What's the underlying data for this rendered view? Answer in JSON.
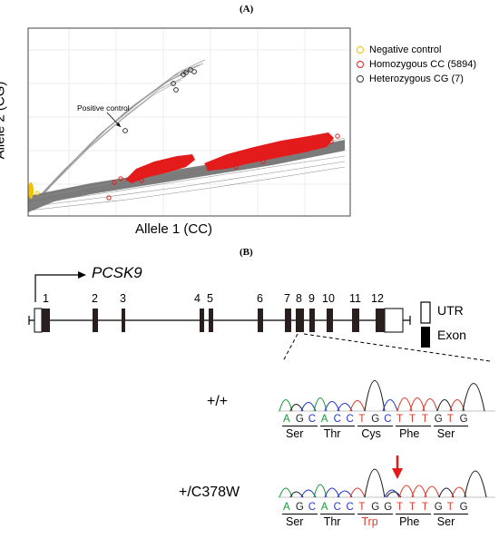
{
  "panel_a": {
    "label": "(A)",
    "ylabel": "Allele 2 (CG)",
    "xlabel": "Allele 1 (CC)",
    "annotation": "Positive control",
    "legend": [
      {
        "label": "Negative control",
        "color": "#f2c200"
      },
      {
        "label": "Homozygous CC (5894)",
        "color": "#ee1c1c"
      },
      {
        "label": "Heterozygous CG (7)",
        "color": "#333333"
      }
    ]
  },
  "panel_b": {
    "label": "(B)",
    "gene": "PCSK9",
    "exons": [
      "1",
      "2",
      "3",
      "4",
      "5",
      "6",
      "7",
      "8",
      "9",
      "10",
      "11",
      "12"
    ],
    "legend": {
      "utr": "UTR",
      "exon": "Exon"
    },
    "rows": [
      {
        "genotype": "+/+",
        "bases": [
          {
            "b": "A",
            "c": "#1a9a3a"
          },
          {
            "b": "G",
            "c": "#222222"
          },
          {
            "b": "C",
            "c": "#2637c8"
          },
          {
            "b": "A",
            "c": "#1a9a3a"
          },
          {
            "b": "C",
            "c": "#2637c8"
          },
          {
            "b": "C",
            "c": "#2637c8"
          },
          {
            "b": "T",
            "c": "#e03a2a"
          },
          {
            "b": "G",
            "c": "#222222"
          },
          {
            "b": "C",
            "c": "#2637c8"
          },
          {
            "b": "T",
            "c": "#e03a2a"
          },
          {
            "b": "T",
            "c": "#e03a2a"
          },
          {
            "b": "T",
            "c": "#e03a2a"
          },
          {
            "b": "G",
            "c": "#222222"
          },
          {
            "b": "T",
            "c": "#e03a2a"
          },
          {
            "b": "G",
            "c": "#222222"
          }
        ],
        "codons": [
          {
            "aa": "Ser",
            "c": "#000000"
          },
          {
            "aa": "Thr",
            "c": "#000000"
          },
          {
            "aa": "Cys",
            "c": "#000000"
          },
          {
            "aa": "Phe",
            "c": "#000000"
          },
          {
            "aa": "Ser",
            "c": "#000000"
          }
        ]
      },
      {
        "genotype": "+/C378W",
        "bases": [
          {
            "b": "A",
            "c": "#1a9a3a"
          },
          {
            "b": "G",
            "c": "#222222"
          },
          {
            "b": "C",
            "c": "#2637c8"
          },
          {
            "b": "A",
            "c": "#1a9a3a"
          },
          {
            "b": "C",
            "c": "#2637c8"
          },
          {
            "b": "C",
            "c": "#2637c8"
          },
          {
            "b": "T",
            "c": "#e03a2a"
          },
          {
            "b": "G",
            "c": "#222222"
          },
          {
            "b": "G",
            "c": "#222222"
          },
          {
            "b": "T",
            "c": "#e03a2a"
          },
          {
            "b": "T",
            "c": "#e03a2a"
          },
          {
            "b": "T",
            "c": "#e03a2a"
          },
          {
            "b": "G",
            "c": "#222222"
          },
          {
            "b": "T",
            "c": "#e03a2a"
          },
          {
            "b": "G",
            "c": "#222222"
          }
        ],
        "codons": [
          {
            "aa": "Ser",
            "c": "#000000"
          },
          {
            "aa": "Thr",
            "c": "#000000"
          },
          {
            "aa": "Trp",
            "c": "#e03a2a"
          },
          {
            "aa": "Phe",
            "c": "#000000"
          },
          {
            "aa": "Ser",
            "c": "#000000"
          }
        ]
      }
    ]
  }
}
